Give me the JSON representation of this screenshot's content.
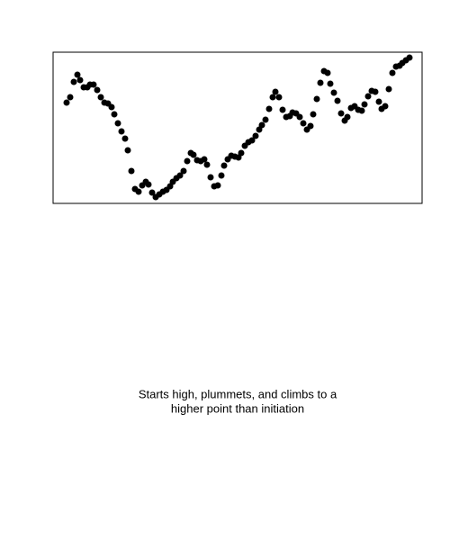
{
  "chart_data": {
    "type": "scatter",
    "x": [
      15,
      19,
      23,
      27,
      30,
      34,
      38,
      41,
      45,
      49,
      53,
      57,
      61,
      65,
      68,
      72,
      76,
      80,
      83,
      87,
      91,
      95,
      99,
      103,
      106,
      110,
      114,
      118,
      122,
      126,
      130,
      133,
      137,
      141,
      145,
      149,
      153,
      156,
      160,
      164,
      168,
      171,
      175,
      179,
      183,
      187,
      190,
      194,
      198,
      202,
      206,
      209,
      213,
      217,
      221,
      225,
      229,
      232,
      236,
      240,
      244,
      247,
      251,
      255,
      259,
      263,
      266,
      270,
      274,
      278,
      282,
      286,
      289,
      293,
      297,
      301,
      305,
      308,
      312,
      316,
      320,
      324,
      327,
      331,
      335,
      339,
      343,
      346,
      350,
      354,
      358,
      362,
      365,
      369,
      373,
      377,
      381,
      385,
      388,
      392,
      396
    ],
    "values": [
      112,
      118,
      135,
      143,
      137,
      129,
      129,
      132,
      132,
      126,
      118,
      112,
      111,
      107,
      99,
      89,
      80,
      72,
      59,
      36,
      16,
      13,
      20,
      24,
      21,
      12,
      7,
      10,
      13,
      15,
      19,
      24,
      28,
      31,
      36,
      47,
      56,
      54,
      48,
      47,
      49,
      43,
      29,
      19,
      20,
      31,
      42,
      49,
      53,
      52,
      51,
      56,
      64,
      68,
      70,
      75,
      82,
      87,
      93,
      105,
      118,
      124,
      118,
      104,
      96,
      97,
      101,
      100,
      96,
      89,
      82,
      86,
      99,
      116,
      134,
      147,
      145,
      133,
      123,
      114,
      100,
      92,
      96,
      106,
      108,
      104,
      103,
      110,
      119,
      125,
      124,
      113,
      105,
      108,
      127,
      145,
      152,
      153,
      156,
      159,
      162
    ],
    "color": "#000000",
    "xlim": [
      0,
      410
    ],
    "ylim": [
      0,
      168
    ],
    "caption": [
      "Starts high, plummets, and climbs to a",
      "higher point than initiation"
    ]
  }
}
